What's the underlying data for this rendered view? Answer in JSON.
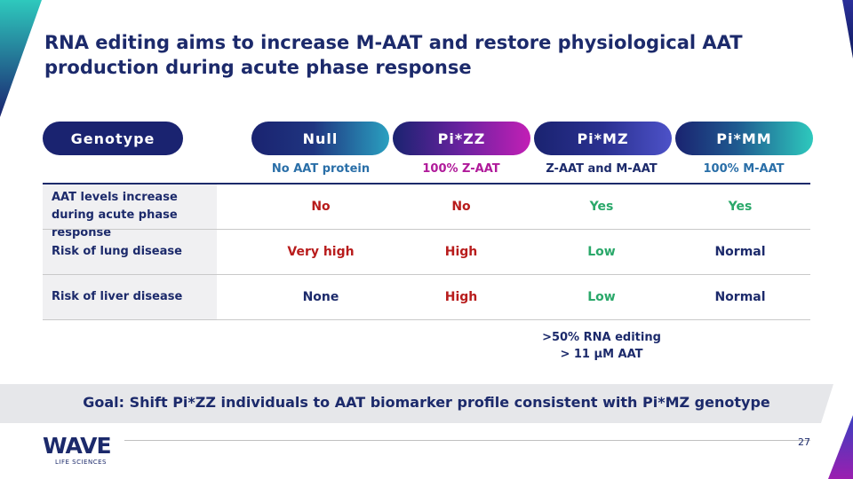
{
  "title": "RNA editing aims to increase M-AAT and restore physiological AAT production during acute phase response",
  "header": {
    "genotype_label": "Genotype",
    "columns": [
      {
        "label": "Null",
        "subtitle": "No AAT protein"
      },
      {
        "label": "Pi*ZZ",
        "subtitle": "100% Z-AAT"
      },
      {
        "label": "Pi*MZ",
        "subtitle": "Z-AAT and M-AAT"
      },
      {
        "label": "Pi*MM",
        "subtitle": "100% M-AAT"
      }
    ]
  },
  "rows": [
    {
      "label": "AAT levels increase during acute phase response",
      "values": [
        "No",
        "No",
        "Yes",
        "Yes"
      ]
    },
    {
      "label": "Risk of lung disease",
      "values": [
        "Very high",
        "High",
        "Low",
        "Normal"
      ]
    },
    {
      "label": "Risk of liver disease",
      "values": [
        "None",
        "High",
        "Low",
        "Normal"
      ]
    }
  ],
  "note": {
    "line1": ">50% RNA editing",
    "line2": "> 11 µM AAT"
  },
  "goal": "Goal: Shift Pi*ZZ individuals to AAT biomarker profile consistent with Pi*MZ genotype",
  "footer": {
    "logo_text": "WAVE",
    "logo_sub": "LIFE SCIENCES",
    "page_number": "27"
  },
  "colors": {
    "navy": "#1c2a6b",
    "red": "#b81c1c",
    "green": "#2aa86a",
    "magenta": "#c21fb5",
    "teal": "#2ec9bd"
  }
}
